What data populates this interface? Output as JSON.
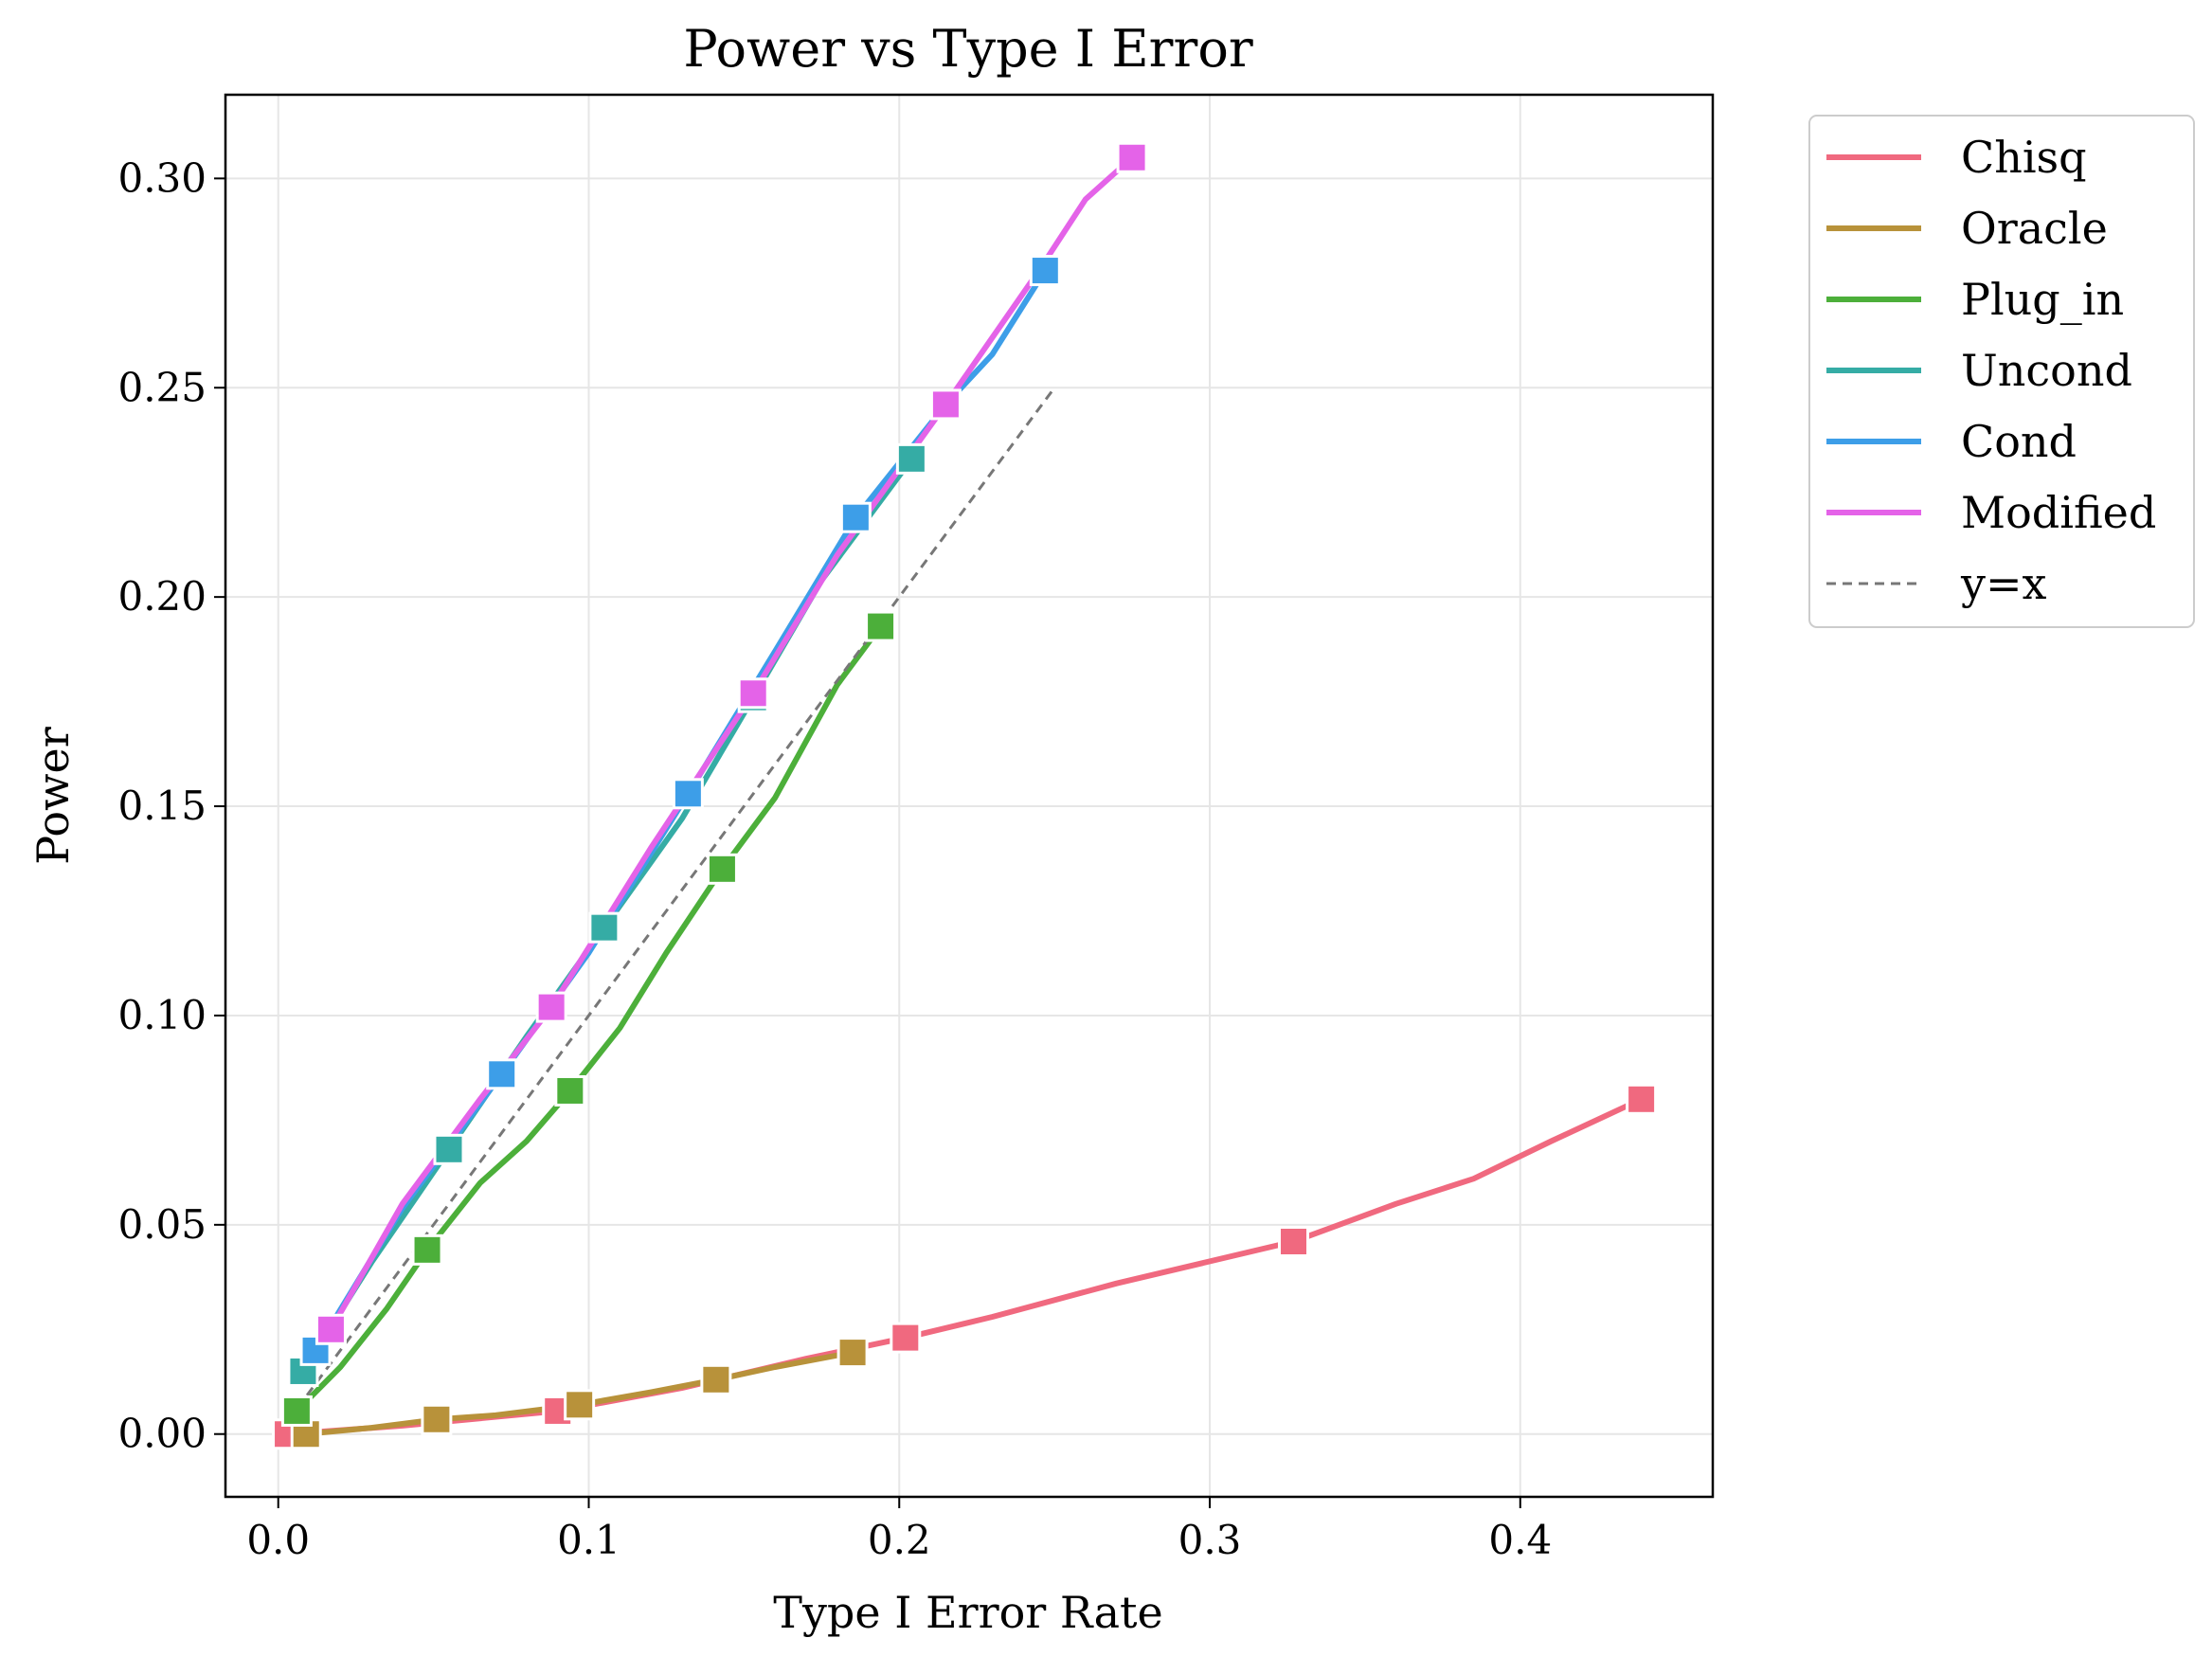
{
  "chart_data": {
    "type": "line",
    "title": "Power vs Type I Error",
    "xlabel": "Type I Error Rate",
    "ylabel": "Power",
    "xlim": [
      -0.017,
      0.462
    ],
    "ylim": [
      -0.015,
      0.32
    ],
    "xticks": [
      0.0,
      0.1,
      0.2,
      0.3,
      0.4
    ],
    "xtick_labels": [
      "0.0",
      "0.1",
      "0.2",
      "0.3",
      "0.4"
    ],
    "yticks": [
      0.0,
      0.05,
      0.1,
      0.15,
      0.2,
      0.25,
      0.3
    ],
    "ytick_labels": [
      "0.00",
      "0.05",
      "0.10",
      "0.15",
      "0.20",
      "0.25",
      "0.30"
    ],
    "grid": true,
    "legend_position": "outside-right-top",
    "series": [
      {
        "name": "Chisq",
        "color": "#f0697f",
        "marker": "square",
        "points": [
          [
            0.003,
            0.0
          ],
          [
            0.04,
            0.002
          ],
          [
            0.09,
            0.0055
          ],
          [
            0.13,
            0.011
          ],
          [
            0.17,
            0.018
          ],
          [
            0.202,
            0.023
          ],
          [
            0.23,
            0.028
          ],
          [
            0.27,
            0.036
          ],
          [
            0.327,
            0.046
          ],
          [
            0.36,
            0.055
          ],
          [
            0.385,
            0.061
          ],
          [
            0.41,
            0.07
          ],
          [
            0.439,
            0.08
          ]
        ],
        "markers": [
          [
            0.003,
            0.0
          ],
          [
            0.09,
            0.0055
          ],
          [
            0.202,
            0.023
          ],
          [
            0.327,
            0.046
          ],
          [
            0.439,
            0.08
          ]
        ]
      },
      {
        "name": "Oracle",
        "color": "#b8923a",
        "marker": "square",
        "points": [
          [
            0.009,
            0.0
          ],
          [
            0.03,
            0.0015
          ],
          [
            0.051,
            0.0035
          ],
          [
            0.07,
            0.0045
          ],
          [
            0.097,
            0.007
          ],
          [
            0.12,
            0.01
          ],
          [
            0.141,
            0.013
          ],
          [
            0.16,
            0.016
          ],
          [
            0.185,
            0.0195
          ]
        ],
        "markers": [
          [
            0.009,
            0.0
          ],
          [
            0.051,
            0.0035
          ],
          [
            0.097,
            0.007
          ],
          [
            0.141,
            0.013
          ],
          [
            0.185,
            0.0195
          ]
        ]
      },
      {
        "name": "Plug_in",
        "color": "#4caf3a",
        "marker": "square",
        "points": [
          [
            0.006,
            0.0055
          ],
          [
            0.02,
            0.016
          ],
          [
            0.035,
            0.03
          ],
          [
            0.048,
            0.044
          ],
          [
            0.065,
            0.06
          ],
          [
            0.08,
            0.07
          ],
          [
            0.094,
            0.082
          ],
          [
            0.11,
            0.097
          ],
          [
            0.125,
            0.115
          ],
          [
            0.143,
            0.135
          ],
          [
            0.16,
            0.152
          ],
          [
            0.18,
            0.179
          ],
          [
            0.194,
            0.193
          ]
        ],
        "markers": [
          [
            0.006,
            0.0055
          ],
          [
            0.048,
            0.044
          ],
          [
            0.094,
            0.082
          ],
          [
            0.143,
            0.135
          ],
          [
            0.194,
            0.193
          ]
        ]
      },
      {
        "name": "Uncond",
        "color": "#35aca5",
        "marker": "square",
        "points": [
          [
            0.008,
            0.015
          ],
          [
            0.03,
            0.041
          ],
          [
            0.055,
            0.068
          ],
          [
            0.08,
            0.095
          ],
          [
            0.105,
            0.121
          ],
          [
            0.13,
            0.147
          ],
          [
            0.153,
            0.176
          ],
          [
            0.175,
            0.204
          ],
          [
            0.204,
            0.233
          ]
        ],
        "markers": [
          [
            0.008,
            0.015
          ],
          [
            0.055,
            0.068
          ],
          [
            0.105,
            0.121
          ],
          [
            0.153,
            0.176
          ],
          [
            0.204,
            0.233
          ]
        ]
      },
      {
        "name": "Cond",
        "color": "#3d9ee8",
        "marker": "square",
        "points": [
          [
            0.012,
            0.02
          ],
          [
            0.04,
            0.054
          ],
          [
            0.072,
            0.086
          ],
          [
            0.1,
            0.115
          ],
          [
            0.132,
            0.153
          ],
          [
            0.16,
            0.187
          ],
          [
            0.186,
            0.219
          ],
          [
            0.215,
            0.246
          ],
          [
            0.23,
            0.258
          ],
          [
            0.247,
            0.278
          ]
        ],
        "markers": [
          [
            0.012,
            0.02
          ],
          [
            0.072,
            0.086
          ],
          [
            0.132,
            0.153
          ],
          [
            0.186,
            0.219
          ],
          [
            0.247,
            0.278
          ]
        ]
      },
      {
        "name": "Modified",
        "color": "#e463e8",
        "marker": "square",
        "points": [
          [
            0.017,
            0.025
          ],
          [
            0.04,
            0.055
          ],
          [
            0.065,
            0.08
          ],
          [
            0.088,
            0.102
          ],
          [
            0.12,
            0.14
          ],
          [
            0.153,
            0.177
          ],
          [
            0.18,
            0.21
          ],
          [
            0.215,
            0.246
          ],
          [
            0.245,
            0.278
          ],
          [
            0.26,
            0.295
          ],
          [
            0.275,
            0.305
          ]
        ],
        "markers": [
          [
            0.017,
            0.025
          ],
          [
            0.088,
            0.102
          ],
          [
            0.153,
            0.177
          ],
          [
            0.215,
            0.246
          ],
          [
            0.275,
            0.305
          ]
        ]
      }
    ],
    "reference_line": {
      "name": "y=x",
      "color": "#777777",
      "style": "dashed",
      "points": [
        [
          0.0,
          0.0
        ],
        [
          0.25,
          0.25
        ]
      ]
    }
  }
}
